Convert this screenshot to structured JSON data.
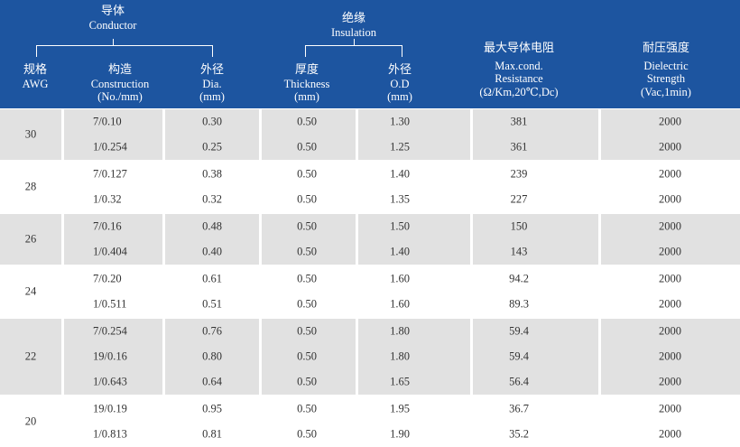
{
  "header": {
    "conductor_zh": "导体",
    "conductor_en": "Conductor",
    "insulation_zh": "绝缘",
    "insulation_en": "Insulation",
    "awg_zh": "规格",
    "awg_en": "AWG",
    "construction_zh": "构造",
    "construction_en": "Construction",
    "construction_unit": "(No./mm)",
    "dia_zh": "外径",
    "dia_en": "Dia.",
    "dia_unit": "(mm)",
    "thickness_zh": "厚度",
    "thickness_en": "Thickness",
    "thickness_unit": "(mm)",
    "od_zh": "外径",
    "od_en": "O.D",
    "od_unit": "(mm)",
    "resistance_zh": "最大导体电阻",
    "resistance_en1": "Max.cond.",
    "resistance_en2": "Resistance",
    "resistance_unit": "(Ω/Km,20℃,Dc)",
    "dielectric_zh": "耐压强度",
    "dielectric_en1": "Dielectric",
    "dielectric_en2": "Strength",
    "dielectric_unit": "(Vac,1min)"
  },
  "groups": [
    {
      "awg": "30",
      "shade": "grey",
      "rows": [
        {
          "construction": "7/0.10",
          "dia": "0.30",
          "thickness": "0.50",
          "od": "1.30",
          "resistance": "381",
          "dielectric": "2000"
        },
        {
          "construction": "1/0.254",
          "dia": "0.25",
          "thickness": "0.50",
          "od": "1.25",
          "resistance": "361",
          "dielectric": "2000"
        }
      ]
    },
    {
      "awg": "28",
      "shade": "white",
      "rows": [
        {
          "construction": "7/0.127",
          "dia": "0.38",
          "thickness": "0.50",
          "od": "1.40",
          "resistance": "239",
          "dielectric": "2000"
        },
        {
          "construction": "1/0.32",
          "dia": "0.32",
          "thickness": "0.50",
          "od": "1.35",
          "resistance": "227",
          "dielectric": "2000"
        }
      ]
    },
    {
      "awg": "26",
      "shade": "grey",
      "rows": [
        {
          "construction": "7/0.16",
          "dia": "0.48",
          "thickness": "0.50",
          "od": "1.50",
          "resistance": "150",
          "dielectric": "2000"
        },
        {
          "construction": "1/0.404",
          "dia": "0.40",
          "thickness": "0.50",
          "od": "1.40",
          "resistance": "143",
          "dielectric": "2000"
        }
      ]
    },
    {
      "awg": "24",
      "shade": "white",
      "rows": [
        {
          "construction": "7/0.20",
          "dia": "0.61",
          "thickness": "0.50",
          "od": "1.60",
          "resistance": "94.2",
          "dielectric": "2000"
        },
        {
          "construction": "1/0.511",
          "dia": "0.51",
          "thickness": "0.50",
          "od": "1.60",
          "resistance": "89.3",
          "dielectric": "2000"
        }
      ]
    },
    {
      "awg": "22",
      "shade": "grey",
      "rows": [
        {
          "construction": "7/0.254",
          "dia": "0.76",
          "thickness": "0.50",
          "od": "1.80",
          "resistance": "59.4",
          "dielectric": "2000"
        },
        {
          "construction": "19/0.16",
          "dia": "0.80",
          "thickness": "0.50",
          "od": "1.80",
          "resistance": "59.4",
          "dielectric": "2000"
        },
        {
          "construction": "1/0.643",
          "dia": "0.64",
          "thickness": "0.50",
          "od": "1.65",
          "resistance": "56.4",
          "dielectric": "2000"
        }
      ]
    },
    {
      "awg": "20",
      "shade": "white",
      "rows": [
        {
          "construction": "19/0.19",
          "dia": "0.95",
          "thickness": "0.50",
          "od": "1.95",
          "resistance": "36.7",
          "dielectric": "2000"
        },
        {
          "construction": "1/0.813",
          "dia": "0.81",
          "thickness": "0.50",
          "od": "1.90",
          "resistance": "35.2",
          "dielectric": "2000"
        }
      ]
    }
  ],
  "colors": {
    "header_bg": "#1d55a0",
    "row_grey": "#e1e1e1",
    "text": "#333333"
  }
}
